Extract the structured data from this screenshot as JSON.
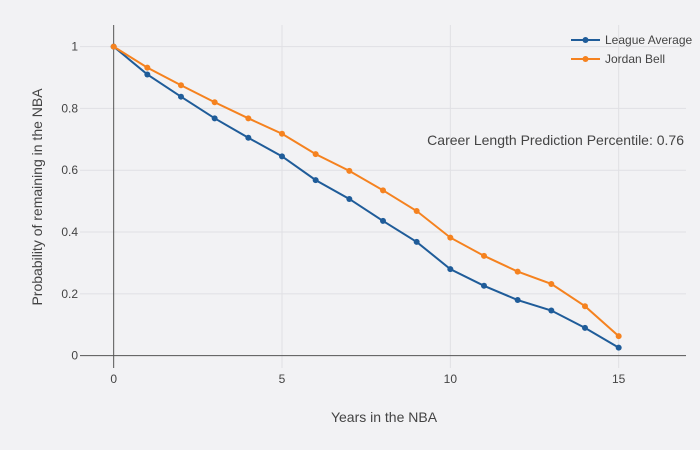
{
  "chart_data": {
    "type": "line",
    "title": "",
    "xlabel": "Years in the NBA",
    "ylabel": "Probability of remaining in the NBA",
    "xlim": [
      -1,
      17
    ],
    "ylim": [
      -0.04,
      1.07
    ],
    "x_ticks": [
      0,
      5,
      10,
      15
    ],
    "y_ticks": [
      0,
      0.2,
      0.4,
      0.6,
      0.8,
      1
    ],
    "x_tick_labels": [
      "0",
      "5",
      "10",
      "15"
    ],
    "y_tick_labels": [
      "0",
      "0.2",
      "0.4",
      "0.6",
      "0.8",
      "1"
    ],
    "grid": true,
    "legend_position": "top-right",
    "annotation": "Career Length Prediction Percentile: 0.76",
    "x": [
      0,
      1,
      2,
      3,
      4,
      5,
      6,
      7,
      8,
      9,
      10,
      11,
      12,
      13,
      14,
      15
    ],
    "series": [
      {
        "name": "League Average",
        "color": "#1f5c99",
        "values": [
          1.0,
          0.91,
          0.838,
          0.768,
          0.705,
          0.645,
          0.568,
          0.507,
          0.436,
          0.368,
          0.28,
          0.226,
          0.18,
          0.146,
          0.09,
          0.026
        ]
      },
      {
        "name": "Jordan Bell",
        "color": "#f5821f",
        "values": [
          1.0,
          0.932,
          0.875,
          0.82,
          0.768,
          0.718,
          0.652,
          0.598,
          0.535,
          0.468,
          0.382,
          0.323,
          0.272,
          0.232,
          0.16,
          0.063
        ]
      }
    ]
  }
}
